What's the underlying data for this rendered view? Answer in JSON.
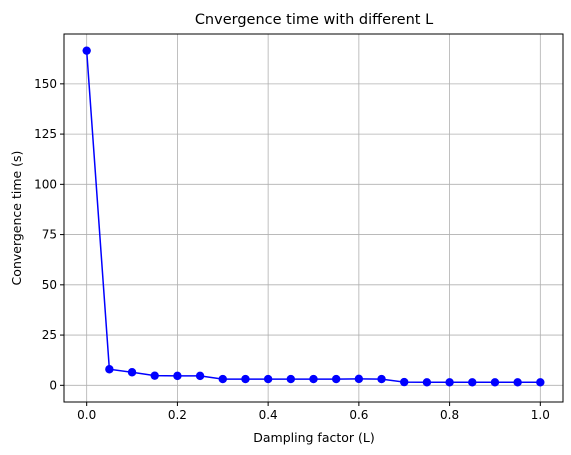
{
  "chart_data": {
    "type": "line",
    "title": "Cnvergence time with different L",
    "xlabel": "Dampling factor (L)",
    "ylabel": "Convergence time (s)",
    "x": [
      0.0,
      0.05,
      0.1,
      0.15,
      0.2,
      0.25,
      0.3,
      0.35,
      0.4,
      0.45,
      0.5,
      0.55,
      0.6,
      0.65,
      0.7,
      0.75,
      0.8,
      0.85,
      0.9,
      0.95,
      1.0
    ],
    "series": [
      {
        "values": [
          166.5,
          8.0,
          6.5,
          4.8,
          4.7,
          4.7,
          3.1,
          3.1,
          3.1,
          3.1,
          3.1,
          3.1,
          3.2,
          3.1,
          1.6,
          1.5,
          1.5,
          1.5,
          1.5,
          1.5,
          1.5
        ],
        "color": "#0000ff",
        "marker": "circle"
      }
    ],
    "xlim": [
      -0.05,
      1.05
    ],
    "ylim": [
      -8.3,
      174.8
    ],
    "xticks": [
      0.0,
      0.2,
      0.4,
      0.6,
      0.8,
      1.0
    ],
    "xtick_labels": [
      "0.0",
      "0.2",
      "0.4",
      "0.6",
      "0.8",
      "1.0"
    ],
    "yticks": [
      0,
      25,
      50,
      75,
      100,
      125,
      150
    ],
    "ytick_labels": [
      "0",
      "25",
      "50",
      "75",
      "100",
      "125",
      "150"
    ],
    "grid": true,
    "legend": false
  }
}
